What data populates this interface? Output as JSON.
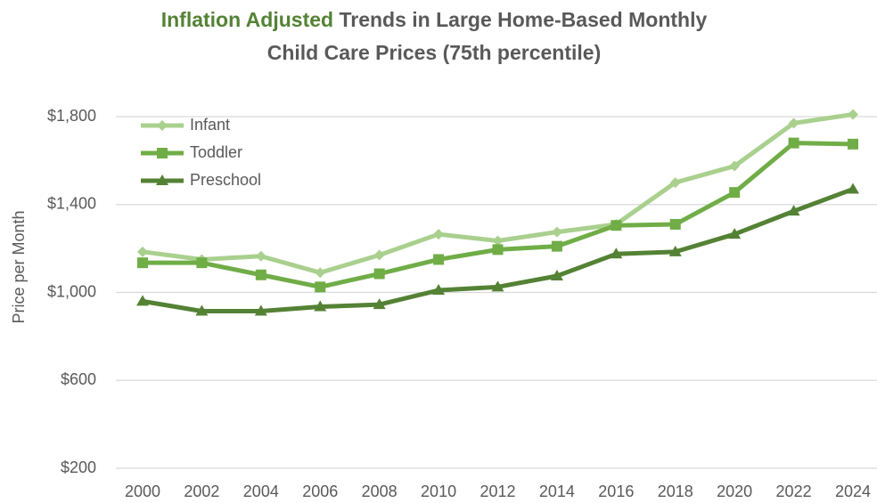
{
  "chart_data": {
    "type": "line",
    "title_highlight": "Inflation Adjusted",
    "title": [
      "Trends in Large Home-Based Monthly",
      "Child Care Prices (75th percentile)"
    ],
    "y_label": "Price per Month",
    "x": [
      2000,
      2002,
      2004,
      2006,
      2008,
      2010,
      2012,
      2014,
      2016,
      2018,
      2020,
      2022,
      2024
    ],
    "xlim": [
      2000,
      2024
    ],
    "xticks": [
      2000,
      2002,
      2004,
      2006,
      2008,
      2010,
      2012,
      2014,
      2016,
      2018,
      2020,
      2022,
      2024
    ],
    "ylim": [
      200,
      1800
    ],
    "yticks": [
      {
        "value": 200,
        "label": "$200"
      },
      {
        "value": 600,
        "label": "$600"
      },
      {
        "value": 1000,
        "label": "$1,000"
      },
      {
        "value": 1400,
        "label": "$1,400"
      },
      {
        "value": 1800,
        "label": "$1,800"
      }
    ],
    "grid": true,
    "legend": "upper left",
    "series": [
      {
        "name": "Infant",
        "color": "#a9d08e",
        "marker": "diamond",
        "values": [
          1185,
          1150,
          1165,
          1090,
          1170,
          1265,
          1235,
          1275,
          1310,
          1500,
          1575,
          1770,
          1810
        ]
      },
      {
        "name": "Toddler",
        "color": "#70ad47",
        "marker": "square",
        "values": [
          1135,
          1135,
          1080,
          1025,
          1085,
          1150,
          1195,
          1210,
          1305,
          1310,
          1455,
          1680,
          1675
        ]
      },
      {
        "name": "Preschool",
        "color": "#548235",
        "marker": "triangle",
        "values": [
          960,
          915,
          915,
          935,
          945,
          1010,
          1025,
          1075,
          1175,
          1185,
          1265,
          1370,
          1470
        ]
      }
    ]
  }
}
